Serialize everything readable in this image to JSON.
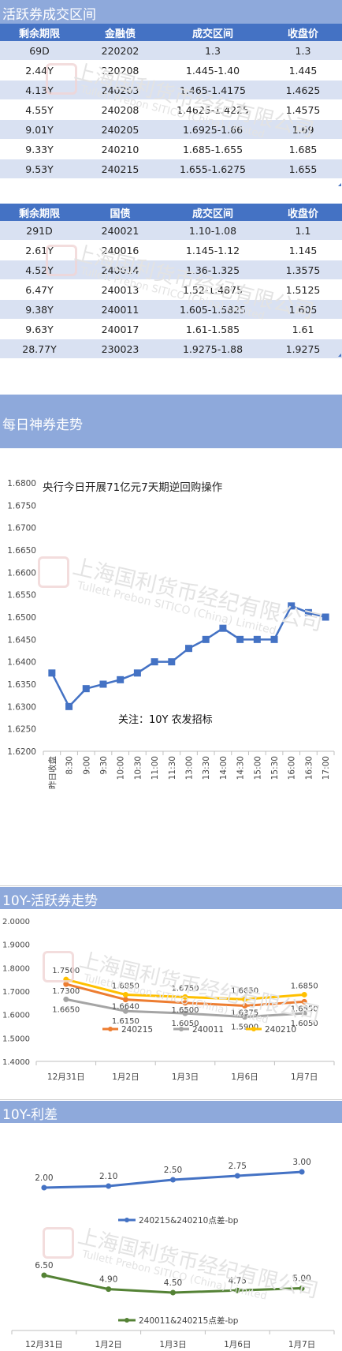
{
  "title_active": "活跃券成交区间",
  "table1": {
    "headers": [
      "剩余期限",
      "金融债",
      "成交区间",
      "收盘价"
    ],
    "rows": [
      [
        "69D",
        "220202",
        "1.3",
        "1.3"
      ],
      [
        "2.44Y",
        "220208",
        "1.445-1.40",
        "1.445"
      ],
      [
        "4.13Y",
        "240203",
        "1.465-1.4175",
        "1.4625"
      ],
      [
        "4.55Y",
        "240208",
        "1.4625-1.4225",
        "1.4575"
      ],
      [
        "9.01Y",
        "240205",
        "1.6925-1.66",
        "1.69"
      ],
      [
        "9.33Y",
        "240210",
        "1.685-1.655",
        "1.685"
      ],
      [
        "9.53Y",
        "240215",
        "1.655-1.6275",
        "1.655"
      ]
    ]
  },
  "table2": {
    "headers": [
      "剩余期限",
      "国债",
      "成交区间",
      "收盘价"
    ],
    "rows": [
      [
        "291D",
        "240021",
        "1.10-1.08",
        "1.1"
      ],
      [
        "2.61Y",
        "240016",
        "1.145-1.12",
        "1.145"
      ],
      [
        "4.52Y",
        "240014",
        "1.36-1.325",
        "1.3575"
      ],
      [
        "6.47Y",
        "240013",
        "1.52-1.4875",
        "1.5125"
      ],
      [
        "9.38Y",
        "240011",
        "1.605-1.5825",
        "1.605"
      ],
      [
        "9.63Y",
        "240017",
        "1.61-1.585",
        "1.61"
      ],
      [
        "28.77Y",
        "230023",
        "1.9275-1.88",
        "1.9275"
      ]
    ]
  },
  "section_daily": "每日神券走势",
  "section_10y_active": "10Y-活跃券走势",
  "section_10y_spread": "10Y-利差",
  "watermark": {
    "cn": "上海国利货币经纪有限公司",
    "en": "Tullett Prebon SITICO (China) Limited"
  },
  "chart_data": [
    {
      "type": "line",
      "title": "央行今日开展71亿元7天期逆回购操作",
      "annotation": "关注：10Y 农发招标",
      "categories": [
        "昨日收盘",
        "8:30",
        "9:00",
        "9:30",
        "10:00",
        "10:30",
        "11:00",
        "11:30",
        "13:00",
        "13:30",
        "14:00",
        "14:30",
        "15:00",
        "15:30",
        "16:00",
        "16:30",
        "17:00"
      ],
      "series": [
        {
          "values": [
            1.6375,
            1.63,
            1.634,
            1.635,
            1.636,
            1.6375,
            1.64,
            1.64,
            1.643,
            1.645,
            1.6475,
            1.645,
            1.645,
            1.645,
            1.6525,
            1.651,
            1.65
          ]
        }
      ],
      "ylim": [
        1.62,
        1.68
      ],
      "yticks": [
        "1.6800",
        "1.6750",
        "1.6700",
        "1.6650",
        "1.6600",
        "1.6550",
        "1.6500",
        "1.6450",
        "1.6400",
        "1.6350",
        "1.6300",
        "1.6250",
        "1.6200"
      ],
      "color": "#4472C4",
      "grid": false
    },
    {
      "type": "line",
      "categories": [
        "12月31日",
        "1月2日",
        "1月3日",
        "1月6日",
        "1月7日"
      ],
      "series": [
        {
          "name": "240215",
          "color": "#ED7D31",
          "values": [
            1.73,
            1.664,
            1.65,
            1.6375,
            1.655
          ]
        },
        {
          "name": "240011",
          "color": "#A5A5A5",
          "values": [
            1.665,
            1.615,
            1.605,
            1.59,
            1.605
          ]
        },
        {
          "name": "240210",
          "color": "#FFC000",
          "values": [
            1.75,
            1.685,
            1.675,
            1.665,
            1.685
          ]
        }
      ],
      "labels": [
        {
          "text": "1.7500",
          "series": 2,
          "i": 0
        },
        {
          "text": "1.7300",
          "series": 0,
          "i": 0
        },
        {
          "text": "1.6650",
          "series": 1,
          "i": 0
        },
        {
          "text": "1.6850",
          "series": 2,
          "i": 1
        },
        {
          "text": "1.6640",
          "series": 0,
          "i": 1
        },
        {
          "text": "1.6150",
          "series": 1,
          "i": 1
        },
        {
          "text": "1.6750",
          "series": 2,
          "i": 2
        },
        {
          "text": "1.6500",
          "series": 0,
          "i": 2
        },
        {
          "text": "1.6050",
          "series": 1,
          "i": 2
        },
        {
          "text": "1.6650",
          "series": 2,
          "i": 3
        },
        {
          "text": "1.6375",
          "series": 0,
          "i": 3
        },
        {
          "text": "1.5900",
          "series": 1,
          "i": 3
        },
        {
          "text": "1.6850",
          "series": 2,
          "i": 4
        },
        {
          "text": "1.6550",
          "series": 0,
          "i": 4
        },
        {
          "text": "1.6050",
          "series": 1,
          "i": 4
        }
      ],
      "ylim": [
        1.4,
        2.0
      ],
      "yticks": [
        "2.0000",
        "1.9000",
        "1.8000",
        "1.7000",
        "1.6000",
        "1.5000",
        "1.4000"
      ],
      "legend": "bottom"
    },
    {
      "type": "line",
      "categories": [
        "12月31日",
        "1月2日",
        "1月3日",
        "1月6日",
        "1月7日"
      ],
      "series": [
        {
          "name": "240215&240210点差-bp",
          "color": "#4472C4",
          "values": [
            2.0,
            2.1,
            2.5,
            2.75,
            3.0
          ],
          "labels": [
            "2.00",
            "2.10",
            "2.50",
            "2.75",
            "3.00"
          ]
        },
        {
          "name": "240011&240215点差-bp",
          "color": "#548235",
          "values": [
            6.5,
            4.9,
            4.5,
            4.75,
            5.0
          ],
          "labels": [
            "6.50",
            "4.90",
            "4.50",
            "4.75",
            "5.00"
          ]
        }
      ],
      "legend": "bottom"
    }
  ]
}
